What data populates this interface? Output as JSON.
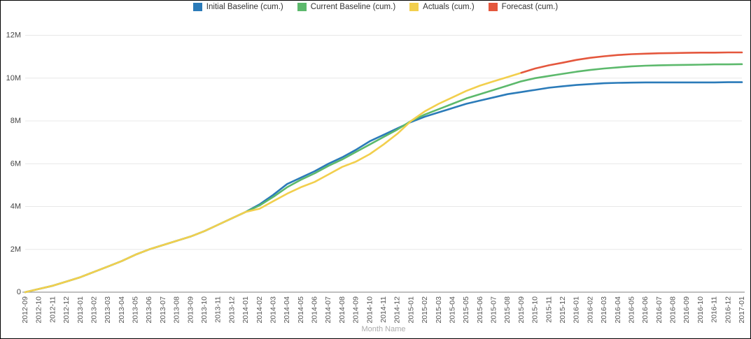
{
  "chart_data": {
    "type": "line",
    "title": "",
    "xlabel": "Month Name",
    "ylabel": "",
    "unit": "M",
    "ylim_m": [
      0,
      12
    ],
    "grid": true,
    "legend_position": "top",
    "y_ticks_m": [
      0,
      2,
      4,
      6,
      8,
      10,
      12
    ],
    "y_tick_labels": [
      "0",
      "2M",
      "4M",
      "6M",
      "8M",
      "10M",
      "12M"
    ],
    "categories": [
      "2012-09",
      "2012-10",
      "2012-11",
      "2012-12",
      "2013-01",
      "2013-02",
      "2013-03",
      "2013-04",
      "2013-05",
      "2013-06",
      "2013-07",
      "2013-08",
      "2013-09",
      "2013-10",
      "2013-11",
      "2013-12",
      "2014-01",
      "2014-02",
      "2014-03",
      "2014-04",
      "2014-05",
      "2014-06",
      "2014-07",
      "2014-08",
      "2014-09",
      "2014-10",
      "2014-11",
      "2014-12",
      "2015-01",
      "2015-02",
      "2015-03",
      "2015-04",
      "2015-05",
      "2015-06",
      "2015-07",
      "2015-08",
      "2015-09",
      "2015-10",
      "2015-11",
      "2015-12",
      "2016-01",
      "2016-02",
      "2016-03",
      "2016-04",
      "2016-05",
      "2016-06",
      "2016-07",
      "2016-08",
      "2016-09",
      "2016-10",
      "2016-11",
      "2016-12",
      "2017-01"
    ],
    "series": [
      {
        "name": "Initial Baseline (cum.)",
        "color": "#2B7BB9",
        "start": 0,
        "values_m": [
          0,
          0.15,
          0.3,
          0.5,
          0.7,
          0.95,
          1.2,
          1.45,
          1.75,
          2.0,
          2.2,
          2.4,
          2.6,
          2.85,
          3.15,
          3.45,
          3.75,
          4.1,
          4.55,
          5.05,
          5.35,
          5.65,
          6.0,
          6.3,
          6.65,
          7.05,
          7.35,
          7.65,
          7.95,
          8.2,
          8.4,
          8.6,
          8.8,
          8.95,
          9.1,
          9.25,
          9.35,
          9.45,
          9.55,
          9.62,
          9.68,
          9.72,
          9.76,
          9.78,
          9.79,
          9.8,
          9.8,
          9.8,
          9.8,
          9.8,
          9.8,
          9.81,
          9.81
        ]
      },
      {
        "name": "Current Baseline (cum.)",
        "color": "#5CB96C",
        "start": 0,
        "values_m": [
          0,
          0.15,
          0.3,
          0.5,
          0.7,
          0.95,
          1.2,
          1.45,
          1.75,
          2.0,
          2.2,
          2.4,
          2.6,
          2.85,
          3.15,
          3.45,
          3.75,
          4.05,
          4.45,
          4.9,
          5.25,
          5.55,
          5.9,
          6.2,
          6.55,
          6.9,
          7.25,
          7.6,
          8.0,
          8.3,
          8.55,
          8.8,
          9.05,
          9.25,
          9.45,
          9.65,
          9.85,
          10.0,
          10.1,
          10.2,
          10.3,
          10.38,
          10.45,
          10.5,
          10.55,
          10.58,
          10.6,
          10.61,
          10.62,
          10.63,
          10.64,
          10.64,
          10.65
        ]
      },
      {
        "name": "Actuals (cum.)",
        "color": "#F2CF4D",
        "start": 0,
        "values_m": [
          0,
          0.15,
          0.3,
          0.5,
          0.7,
          0.95,
          1.2,
          1.45,
          1.75,
          2.0,
          2.2,
          2.4,
          2.6,
          2.85,
          3.15,
          3.45,
          3.75,
          3.9,
          4.25,
          4.6,
          4.9,
          5.15,
          5.5,
          5.85,
          6.1,
          6.45,
          6.9,
          7.4,
          8.0,
          8.45,
          8.8,
          9.1,
          9.4,
          9.65,
          9.85,
          10.05,
          10.25
        ]
      },
      {
        "name": "Forecast (cum.)",
        "color": "#E4573D",
        "start": 36,
        "values_m": [
          10.25,
          10.45,
          10.6,
          10.72,
          10.85,
          10.95,
          11.02,
          11.08,
          11.12,
          11.14,
          11.16,
          11.17,
          11.18,
          11.19,
          11.19,
          11.2,
          11.2
        ]
      }
    ]
  },
  "colors": {
    "background": "#ffffff",
    "border": "#000000",
    "gridline": "#e8e8e8",
    "axis_line": "#9a9a9a",
    "y_tick_label": "#444444",
    "x_tick_label": "#555555",
    "axis_title": "#aaaaaa",
    "legend_text": "#333333"
  }
}
